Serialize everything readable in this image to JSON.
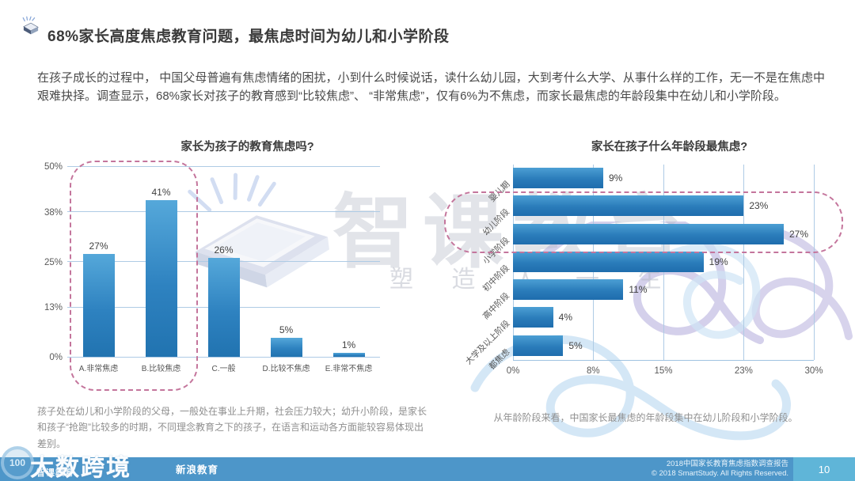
{
  "page": {
    "title": "68%家长高度焦虑教育问题，最焦虑时间为幼儿和小学阶段",
    "paragraph": "在孩子成长的过程中， 中国父母普遍有焦虑情绪的困扰，小到什么时候说话，读什么幼儿园，大到考什么大学、从事什么样的工作，无一不是在焦虑中艰难抉择。调查显示，68%家长对孩子的教育感到“比较焦虑”、 “非常焦虑”，仅有6%为不焦虑，而家长最焦虑的年龄段集中在幼儿和小学阶段。"
  },
  "watermark": {
    "brand": "智课教育",
    "tagline": "塑 造 人 一 生",
    "book_icon": "open-book-logo"
  },
  "chart_data": [
    {
      "type": "bar",
      "orientation": "vertical",
      "title": "家长为孩子的教育焦虑吗?",
      "categories": [
        "A.非常焦虑",
        "B.比较焦虑",
        "C.一般",
        "D.比较不焦虑",
        "E.非常不焦虑"
      ],
      "values": [
        27,
        41,
        26,
        5,
        1
      ],
      "data_labels": [
        "27%",
        "41%",
        "26%",
        "5%",
        "1%"
      ],
      "unit": "%",
      "ylim": [
        0,
        50
      ],
      "ytick_values": [
        0,
        13,
        25,
        38,
        50
      ],
      "yticks": [
        "0%",
        "13%",
        "25%",
        "38%",
        "50%"
      ],
      "grid": "horizontal",
      "bar_color": "#2e82c0",
      "highlight_box_color": "#c4759c",
      "highlighted_categories": [
        "A.非常焦虑",
        "B.比较焦虑"
      ]
    },
    {
      "type": "bar",
      "orientation": "horizontal",
      "title": "家长在孩子什么年龄段最焦虑?",
      "categories": [
        "婴儿期",
        "幼儿阶段",
        "小学阶段",
        "初中阶段",
        "高中阶段",
        "大学及以上阶段",
        "都焦虑"
      ],
      "values": [
        9,
        23,
        27,
        19,
        11,
        4,
        5
      ],
      "data_labels": [
        "9%",
        "23%",
        "27%",
        "19%",
        "11%",
        "4%",
        "5%"
      ],
      "unit": "%",
      "xlim": [
        0,
        30
      ],
      "xtick_values": [
        0,
        8,
        15,
        23,
        30
      ],
      "xticks": [
        "0%",
        "8%",
        "15%",
        "23%",
        "30%"
      ],
      "grid": "vertical",
      "bar_color": "#2a7cba",
      "highlight_box_color": "#c4759c",
      "highlighted_categories": [
        "幼儿阶段",
        "小学阶段"
      ]
    }
  ],
  "captions": {
    "left": "孩子处在幼儿和小学阶段的父母，一般处在事业上升期，社会压力较大；幼升小阶段，是家长和孩子“抢跑”比较多的时期，不同理念教育之下的孩子，在语言和运动各方面能较容易体现出差别。",
    "right": "从年龄阶段来看，中国家长最焦虑的年龄段集中在幼儿阶段和小学阶段。"
  },
  "footer": {
    "report_name": "2018中国家长教育焦虑指数调查报告",
    "copyright": "© 2018 SmartStudy. All Rights Reserved.",
    "page_number": "10",
    "brand": "智课教育",
    "partner": "新浪教育",
    "overlay_watermark": "大数跨境",
    "overlay_badge": "100",
    "bar_color": "#4d96c9",
    "page_box_color": "#5fb5d8"
  }
}
